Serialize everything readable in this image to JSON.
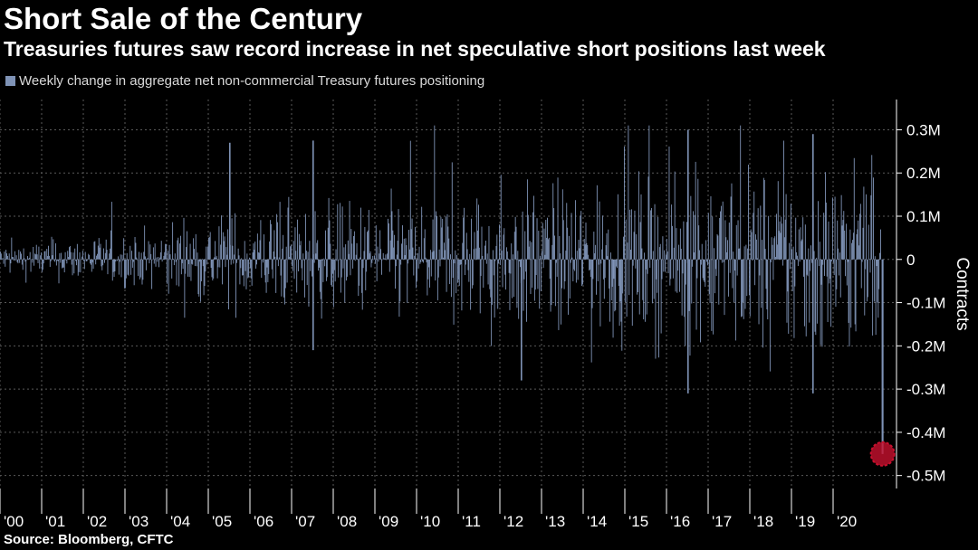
{
  "title": "Short Sale of the Century",
  "subtitle": "Treasuries futures saw record increase in net speculative short positions last week",
  "source": "Source: Bloomberg, CFTC",
  "colors": {
    "bar": "#7f93b6",
    "highlight": "#c8102e",
    "background": "#000000",
    "grid": "#5a5a5a"
  },
  "chart_data": {
    "type": "bar",
    "series": [
      {
        "name": "Weekly change in aggregate net non-commercial Treasury futures positioning",
        "note_values_are_samples": false,
        "approximate_extremes": [
          {
            "x": "2005",
            "y": 270000
          },
          {
            "x": "2007",
            "y": 275000
          },
          {
            "x": "2007",
            "y": -210000
          },
          {
            "x": "2012",
            "y": -280000
          },
          {
            "x": "2016",
            "y": 300000
          },
          {
            "x": "2016",
            "y": -310000
          },
          {
            "x": "2019",
            "y": 290000
          },
          {
            "x": "2019",
            "y": -310000
          },
          {
            "x": "2021-03",
            "y": -450000
          }
        ]
      }
    ],
    "x_tick_labels": [
      "'00",
      "'01",
      "'02",
      "'03",
      "'04",
      "'05",
      "'06",
      "'07",
      "'08",
      "'09",
      "'10",
      "'11",
      "'12",
      "'13",
      "'14",
      "'15",
      "'16",
      "'17",
      "'18",
      "'19",
      "'20"
    ],
    "y_tick_labels": [
      "0.3M",
      "0.2M",
      "0.1M",
      "0",
      "-0.1M",
      "-0.2M",
      "-0.3M",
      "-0.4M",
      "-0.5M"
    ],
    "y_tick_values": [
      300000,
      200000,
      100000,
      0,
      -100000,
      -200000,
      -300000,
      -400000,
      -500000
    ],
    "ylim": [
      -530000,
      370000
    ],
    "ylabel": "Contracts",
    "xlabel": "",
    "grid": true,
    "highlight": {
      "x": "2021-03",
      "y": -450000
    }
  }
}
